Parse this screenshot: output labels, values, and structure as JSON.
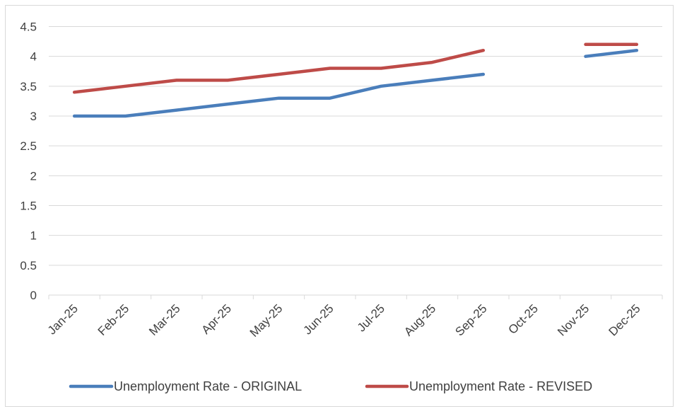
{
  "chart_data": {
    "type": "line",
    "title": "",
    "xlabel": "",
    "ylabel": "",
    "categories": [
      "Jan-25",
      "Feb-25",
      "Mar-25",
      "Apr-25",
      "May-25",
      "Jun-25",
      "Jul-25",
      "Aug-25",
      "Sep-25",
      "Oct-25",
      "Nov-25",
      "Dec-25"
    ],
    "ylim": [
      0,
      4.5
    ],
    "y_ticks": [
      0,
      0.5,
      1,
      1.5,
      2,
      2.5,
      3,
      3.5,
      4,
      4.5
    ],
    "grid": "horizontal",
    "legend_position": "bottom",
    "series": [
      {
        "name": "Unemployment Rate - ORIGINAL",
        "color": "#4a7ebb",
        "values": [
          3.0,
          3.0,
          3.1,
          3.2,
          3.3,
          3.3,
          3.5,
          3.6,
          3.7,
          null,
          4.0,
          4.1
        ]
      },
      {
        "name": "Unemployment Rate - REVISED",
        "color": "#be4b48",
        "values": [
          3.4,
          3.5,
          3.6,
          3.6,
          3.7,
          3.8,
          3.8,
          3.9,
          4.1,
          null,
          4.2,
          4.2
        ]
      }
    ]
  }
}
